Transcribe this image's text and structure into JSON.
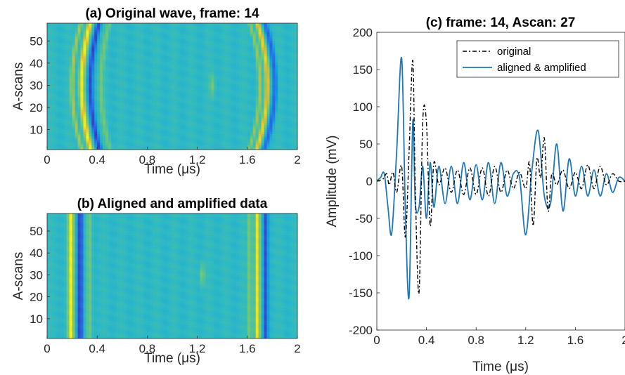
{
  "chart_data": [
    {
      "type": "heatmap",
      "title": "(a) Original wave, frame: 14",
      "xlabel": "Time (μs)",
      "ylabel": "A-scans",
      "xlim": [
        0,
        2
      ],
      "ylim": [
        1,
        58
      ],
      "xticks": [
        "0",
        "0.4",
        "0.8",
        "1.2",
        "1.6",
        "2"
      ],
      "yticks": [
        "10",
        "20",
        "30",
        "40",
        "50"
      ],
      "bands": [
        {
          "t": 0.2,
          "v": 0.6,
          "w": 0.016,
          "curve": 0.07
        },
        {
          "t": 0.275,
          "v": 1.0,
          "w": 0.022,
          "curve": 0.07
        },
        {
          "t": 0.345,
          "v": -0.9,
          "w": 0.022,
          "curve": 0.07
        },
        {
          "t": 0.43,
          "v": 0.3,
          "w": 0.02,
          "curve": 0.07
        },
        {
          "t": 1.32,
          "v": 0.35,
          "w": 0.02,
          "curve": 0.0,
          "center": 30,
          "span": 5
        },
        {
          "t": 1.7,
          "v": 0.5,
          "w": 0.016,
          "curve": -0.08
        },
        {
          "t": 1.76,
          "v": 0.85,
          "w": 0.02,
          "curve": -0.08
        },
        {
          "t": 1.82,
          "v": -0.7,
          "w": 0.02,
          "curve": -0.08
        }
      ]
    },
    {
      "type": "heatmap",
      "title": "(b) Aligned and amplified data",
      "xlabel": "Time (μs)",
      "ylabel": "A-scans",
      "xlim": [
        0,
        2
      ],
      "ylim": [
        1,
        58
      ],
      "xticks": [
        "0",
        "0.4",
        "0.8",
        "1.2",
        "1.6",
        "2"
      ],
      "yticks": [
        "10",
        "20",
        "30",
        "40",
        "50"
      ],
      "bands": [
        {
          "t": 0.19,
          "v": 1.0,
          "w": 0.022,
          "curve": 0.0
        },
        {
          "t": 0.265,
          "v": -1.0,
          "w": 0.022,
          "curve": 0.0
        },
        {
          "t": 0.34,
          "v": 0.3,
          "w": 0.02,
          "curve": 0.0
        },
        {
          "t": 1.24,
          "v": 0.4,
          "w": 0.02,
          "curve": 0.0,
          "center": 30,
          "span": 5
        },
        {
          "t": 1.62,
          "v": 0.45,
          "w": 0.016,
          "curve": 0.0
        },
        {
          "t": 1.68,
          "v": 0.95,
          "w": 0.02,
          "curve": 0.0
        },
        {
          "t": 1.745,
          "v": -0.85,
          "w": 0.02,
          "curve": 0.0
        }
      ]
    },
    {
      "type": "line",
      "title": "(c) frame: 14, Ascan: 27",
      "xlabel": "Time (μs)",
      "ylabel": "Amplitude (mV)",
      "xlim": [
        0,
        2
      ],
      "ylim": [
        -200,
        200
      ],
      "xticks": [
        "0",
        "0.4",
        "0.8",
        "1.2",
        "1.6",
        "2"
      ],
      "yticks": [
        "200",
        "150",
        "100",
        "50",
        "0",
        "-50",
        "-100",
        "-150",
        "-200"
      ],
      "legend_position": "top-right",
      "series": [
        {
          "name": "original",
          "color": "#000000",
          "dash": "dashdot",
          "x": [
            0,
            0.05,
            0.08,
            0.1,
            0.13,
            0.16,
            0.2,
            0.23,
            0.26,
            0.29,
            0.31,
            0.34,
            0.37,
            0.4,
            0.43,
            0.46,
            0.5,
            0.55,
            0.6,
            0.65,
            0.7,
            0.75,
            0.8,
            0.85,
            0.9,
            0.95,
            1.0,
            1.05,
            1.1,
            1.15,
            1.2,
            1.23,
            1.26,
            1.29,
            1.32,
            1.35,
            1.38,
            1.41,
            1.45,
            1.5,
            1.55,
            1.6,
            1.65,
            1.7,
            1.75,
            1.8,
            1.85,
            1.9,
            1.95,
            2.0
          ],
          "y": [
            0,
            3,
            10,
            -5,
            12,
            -15,
            20,
            -75,
            40,
            162,
            -10,
            -150,
            80,
            78,
            -60,
            25,
            -5,
            18,
            -15,
            15,
            -18,
            18,
            -18,
            18,
            -20,
            20,
            -15,
            15,
            -10,
            12,
            -10,
            25,
            -60,
            30,
            5,
            58,
            -40,
            10,
            -5,
            15,
            -10,
            12,
            -10,
            22,
            -10,
            20,
            -5,
            10,
            0,
            0
          ]
        },
        {
          "name": "aligned & amplified",
          "color": "#1f77b4",
          "dash": "solid",
          "x": [
            0,
            0.03,
            0.06,
            0.09,
            0.12,
            0.16,
            0.2,
            0.23,
            0.26,
            0.29,
            0.31,
            0.34,
            0.37,
            0.4,
            0.43,
            0.46,
            0.5,
            0.55,
            0.6,
            0.65,
            0.7,
            0.75,
            0.8,
            0.85,
            0.9,
            0.95,
            1.0,
            1.05,
            1.1,
            1.15,
            1.2,
            1.25,
            1.3,
            1.35,
            1.4,
            1.45,
            1.5,
            1.55,
            1.6,
            1.65,
            1.7,
            1.75,
            1.8,
            1.85,
            1.9,
            1.95,
            2.0
          ],
          "y": [
            0,
            5,
            10,
            -35,
            -70,
            40,
            165,
            -40,
            -155,
            80,
            -30,
            -35,
            20,
            -50,
            25,
            -35,
            20,
            -30,
            20,
            -30,
            25,
            -25,
            22,
            -25,
            25,
            -30,
            25,
            -20,
            10,
            5,
            -72,
            15,
            68,
            -20,
            -30,
            50,
            -40,
            30,
            -20,
            20,
            -20,
            15,
            -20,
            10,
            -15,
            5,
            0
          ]
        }
      ]
    }
  ]
}
